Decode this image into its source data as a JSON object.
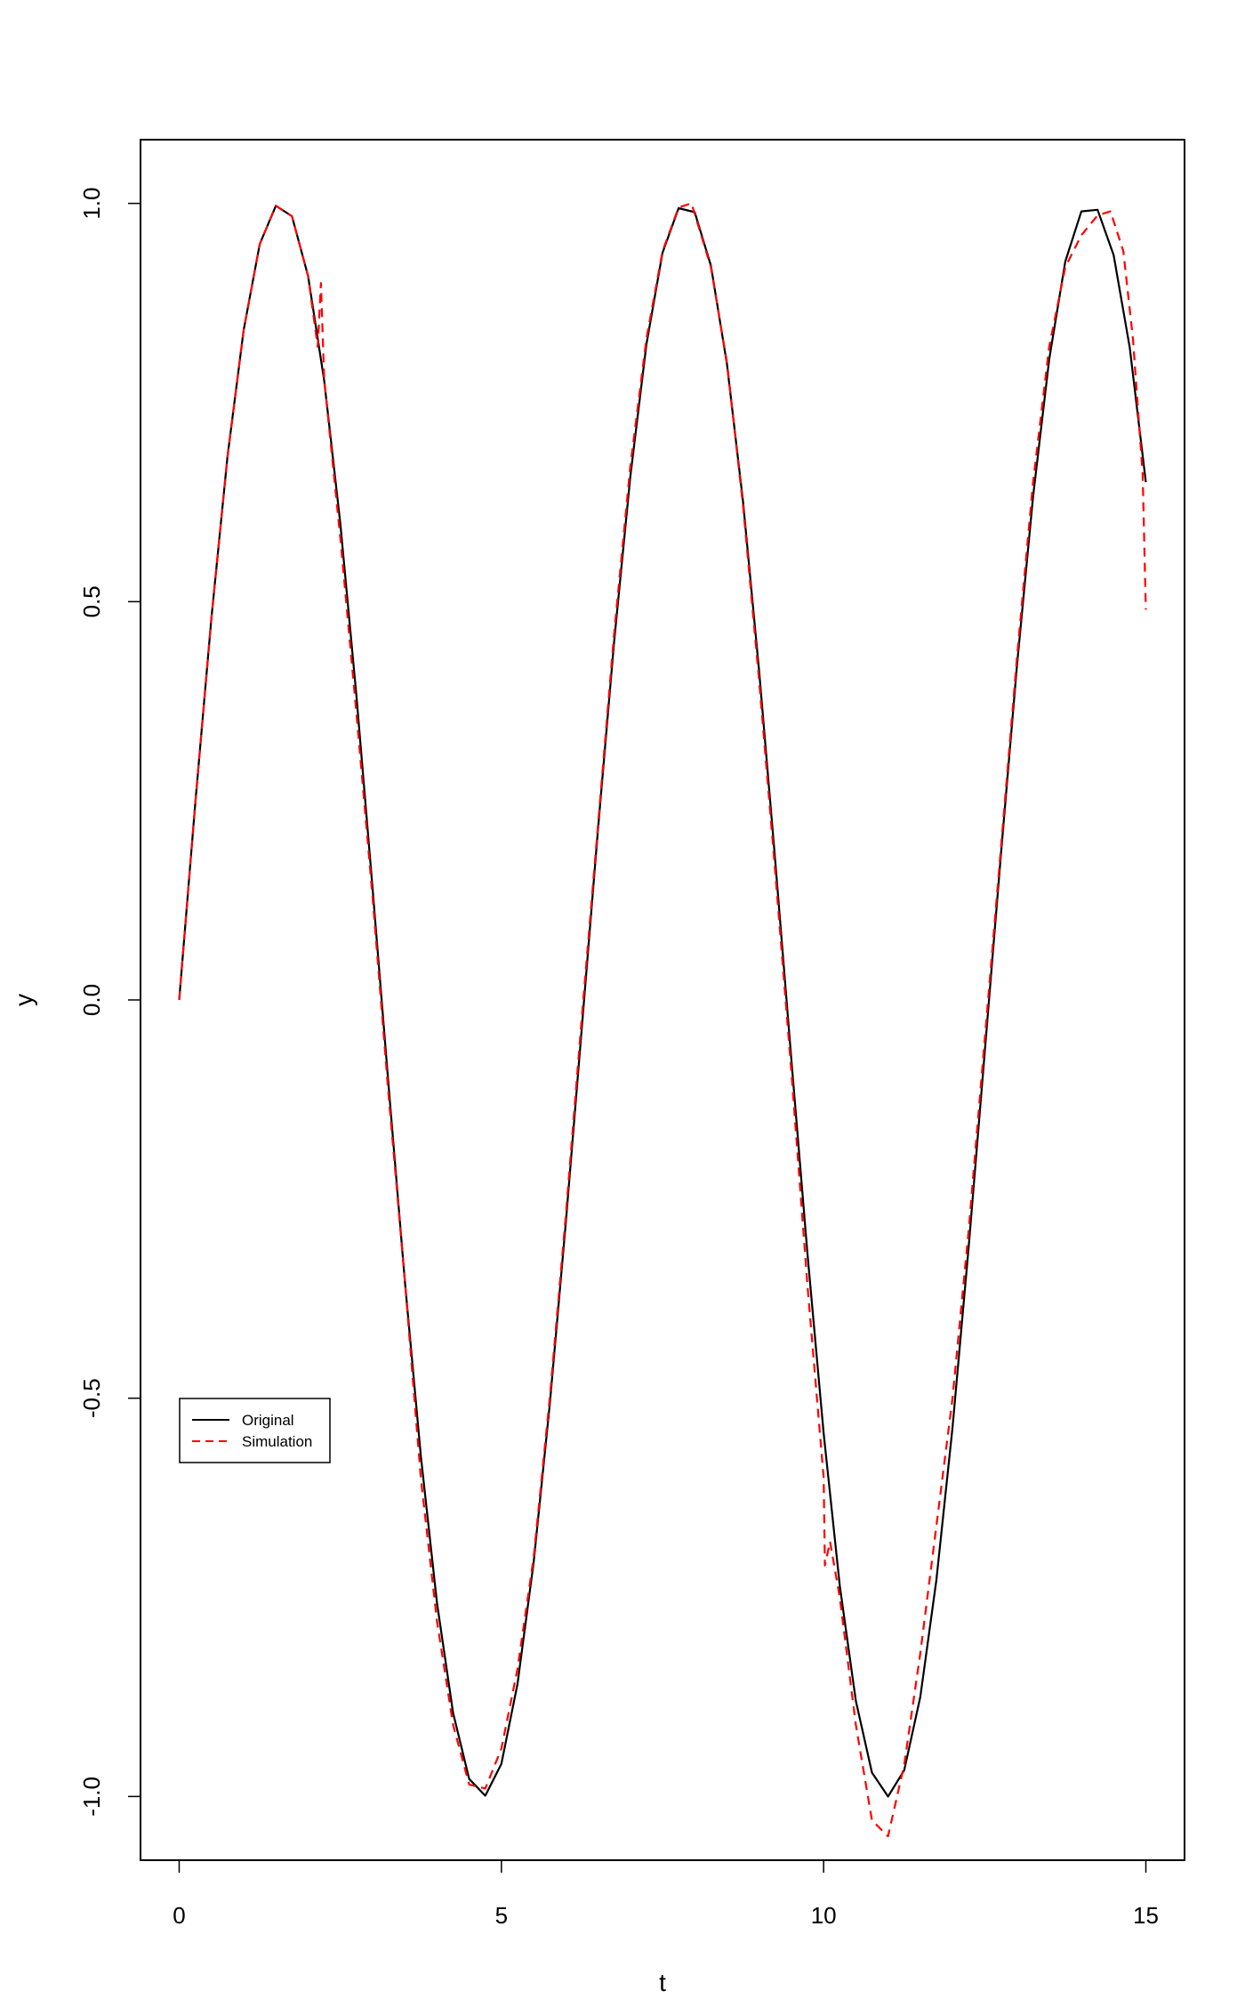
{
  "chart_data": {
    "type": "line",
    "title": "",
    "xlabel": "t",
    "ylabel": "y",
    "xlim": [
      -0.6,
      15.6
    ],
    "ylim": [
      -1.08,
      1.08
    ],
    "xticks": [
      0,
      5,
      10,
      15
    ],
    "xtick_labels": [
      "0",
      "5",
      "10",
      "15"
    ],
    "yticks": [
      -1.0,
      -0.5,
      0.0,
      0.5,
      1.0
    ],
    "ytick_labels": [
      "-1.0",
      "-0.5",
      "0.0",
      "0.5",
      "1.0"
    ],
    "grid": false,
    "legend": {
      "placement": "left",
      "entries": [
        {
          "label": "Original",
          "color": "#000000",
          "style": "solid"
        },
        {
          "label": "Simulation",
          "color": "#ff0000",
          "style": "dashed"
        }
      ]
    },
    "series": [
      {
        "name": "Original",
        "color": "#000000",
        "style": "solid",
        "x": [
          0,
          0.25,
          0.5,
          0.75,
          1,
          1.25,
          1.5,
          1.75,
          2,
          2.25,
          2.5,
          2.75,
          3,
          3.25,
          3.5,
          3.75,
          4,
          4.25,
          4.5,
          4.75,
          5,
          5.25,
          5.5,
          5.75,
          6,
          6.25,
          6.5,
          6.75,
          7,
          7.25,
          7.5,
          7.75,
          8,
          8.25,
          8.5,
          8.75,
          9,
          9.25,
          9.5,
          9.75,
          10,
          10.25,
          10.5,
          10.75,
          11,
          11.25,
          11.5,
          11.75,
          12,
          12.25,
          12.5,
          12.75,
          13,
          13.25,
          13.5,
          13.75,
          14,
          14.25,
          14.5,
          14.75,
          15
        ],
        "y": [
          0,
          0.247,
          0.479,
          0.682,
          0.841,
          0.949,
          0.997,
          0.984,
          0.909,
          0.778,
          0.598,
          0.382,
          0.141,
          -0.108,
          -0.351,
          -0.572,
          -0.757,
          -0.895,
          -0.978,
          -0.999,
          -0.959,
          -0.859,
          -0.706,
          -0.508,
          -0.279,
          -0.033,
          0.215,
          0.45,
          0.657,
          0.823,
          0.938,
          0.994,
          0.989,
          0.922,
          0.798,
          0.625,
          0.412,
          0.174,
          -0.075,
          -0.32,
          -0.544,
          -0.735,
          -0.88,
          -0.97,
          -1.0,
          -0.967,
          -0.875,
          -0.728,
          -0.537,
          -0.311,
          -0.066,
          0.182,
          0.42,
          0.632,
          0.804,
          0.927,
          0.99,
          0.992,
          0.935,
          0.819,
          0.65
        ]
      },
      {
        "name": "Simulation",
        "color": "#ff0000",
        "style": "dashed",
        "x": [
          0,
          0.25,
          0.5,
          0.75,
          1,
          1.25,
          1.5,
          1.75,
          2,
          2.15,
          2.2,
          2.25,
          2.5,
          2.75,
          3,
          3.25,
          3.5,
          3.75,
          4,
          4.25,
          4.5,
          4.75,
          5,
          5.25,
          5.5,
          5.75,
          6,
          6.25,
          6.5,
          6.75,
          7,
          7.25,
          7.5,
          7.75,
          7.95,
          8.25,
          8.5,
          8.75,
          9,
          9.25,
          9.5,
          9.75,
          10,
          10.02,
          10.1,
          10.25,
          10.5,
          10.75,
          11,
          11.25,
          11.5,
          11.75,
          12,
          12.25,
          12.5,
          12.75,
          13,
          13.25,
          13.5,
          13.75,
          14,
          14.25,
          14.45,
          14.65,
          14.8,
          14.95,
          15
        ],
        "y": [
          0,
          0.247,
          0.479,
          0.682,
          0.841,
          0.949,
          0.997,
          0.984,
          0.909,
          0.82,
          0.9,
          0.78,
          0.58,
          0.36,
          0.13,
          -0.12,
          -0.35,
          -0.6,
          -0.78,
          -0.91,
          -0.985,
          -0.99,
          -0.94,
          -0.84,
          -0.7,
          -0.5,
          -0.27,
          -0.02,
          0.22,
          0.46,
          0.67,
          0.83,
          0.94,
          0.995,
          1.0,
          0.92,
          0.8,
          0.62,
          0.4,
          0.16,
          -0.09,
          -0.36,
          -0.6,
          -0.71,
          -0.68,
          -0.75,
          -0.91,
          -1.03,
          -1.05,
          -0.96,
          -0.82,
          -0.66,
          -0.5,
          -0.29,
          -0.05,
          0.19,
          0.43,
          0.65,
          0.82,
          0.92,
          0.96,
          0.985,
          0.99,
          0.94,
          0.83,
          0.66,
          0.49
        ]
      }
    ]
  }
}
